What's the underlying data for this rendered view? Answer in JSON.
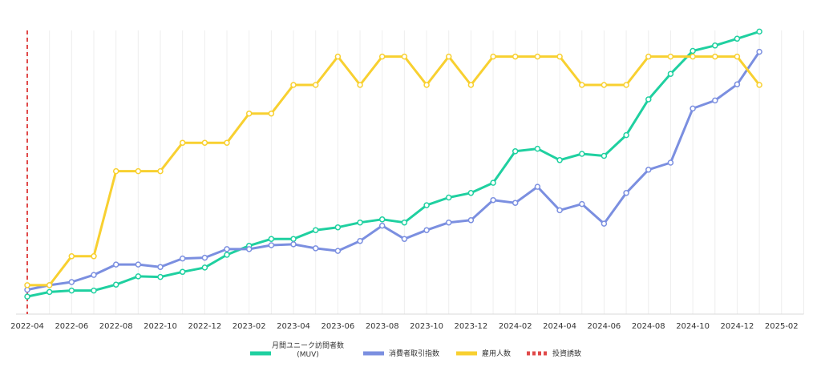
{
  "chart_data": {
    "type": "line",
    "grid": "vertical",
    "legend_position": "bottom-center",
    "x_ticks": [
      "2022-04",
      "2022-06",
      "2022-08",
      "2022-10",
      "2022-12",
      "2023-02",
      "2023-04",
      "2023-06",
      "2023-08",
      "2023-10",
      "2023-12",
      "2024-02",
      "2024-04",
      "2024-06",
      "2024-08",
      "2024-10",
      "2024-12",
      "2025-02"
    ],
    "x": [
      "2022-04",
      "2022-05",
      "2022-06",
      "2022-07",
      "2022-08",
      "2022-09",
      "2022-10",
      "2022-11",
      "2022-12",
      "2023-01",
      "2023-02",
      "2023-03",
      "2023-04",
      "2023-05",
      "2023-06",
      "2023-07",
      "2023-08",
      "2023-09",
      "2023-10",
      "2023-11",
      "2023-12",
      "2024-01",
      "2024-02",
      "2024-03",
      "2024-04",
      "2024-05",
      "2024-06",
      "2024-07",
      "2024-08",
      "2024-09",
      "2024-10",
      "2024-11",
      "2024-12",
      "2025-01"
    ],
    "ylim": [
      0,
      100
    ],
    "series": [
      {
        "name": "月間ユニーク訪問者数 (MUV)",
        "color": "#1fd0a0",
        "legend_lines": [
          "月間ユニーク訪問者数",
          "(MUV)"
        ],
        "values": [
          6.2,
          7.8,
          8.3,
          8.3,
          10.4,
          13.3,
          13.1,
          14.9,
          16.4,
          20.9,
          24.1,
          26.5,
          26.5,
          29.6,
          30.6,
          32.3,
          33.4,
          32.3,
          38.4,
          41.1,
          42.7,
          46.3,
          57.4,
          58.3,
          54.3,
          56.5,
          55.8,
          63.1,
          75.7,
          84.7,
          92.8,
          94.7,
          97.1,
          99.6
        ]
      },
      {
        "name": "消費者取引指数",
        "color": "#7b8fe0",
        "legend_lines": [
          "消費者取引指数"
        ],
        "values": [
          8.6,
          10.2,
          11.3,
          13.8,
          17.5,
          17.5,
          16.6,
          19.6,
          19.9,
          22.9,
          22.9,
          24.3,
          24.6,
          23.2,
          22.3,
          25.8,
          31.2,
          26.5,
          29.6,
          32.3,
          33.1,
          40.2,
          39.2,
          44.9,
          36.6,
          38.8,
          31.9,
          42.7,
          50.9,
          53.4,
          72.5,
          75.3,
          81.0,
          92.5
        ]
      },
      {
        "name": "雇用人数",
        "color": "#f8d030",
        "legend_lines": [
          "雇用人数"
        ],
        "values": [
          10.2,
          10.2,
          20.4,
          20.4,
          50.4,
          50.4,
          50.4,
          60.4,
          60.4,
          60.4,
          70.7,
          70.7,
          80.8,
          80.8,
          90.8,
          80.8,
          90.8,
          90.8,
          80.8,
          90.8,
          80.8,
          90.8,
          90.8,
          90.8,
          90.8,
          80.8,
          80.8,
          80.8,
          90.8,
          90.8,
          90.8,
          90.8,
          90.8,
          80.8
        ]
      }
    ],
    "markers": [
      {
        "name": "投資誘致",
        "x": "2022-04",
        "color": "#e04a4a",
        "style": "dashed"
      }
    ]
  }
}
